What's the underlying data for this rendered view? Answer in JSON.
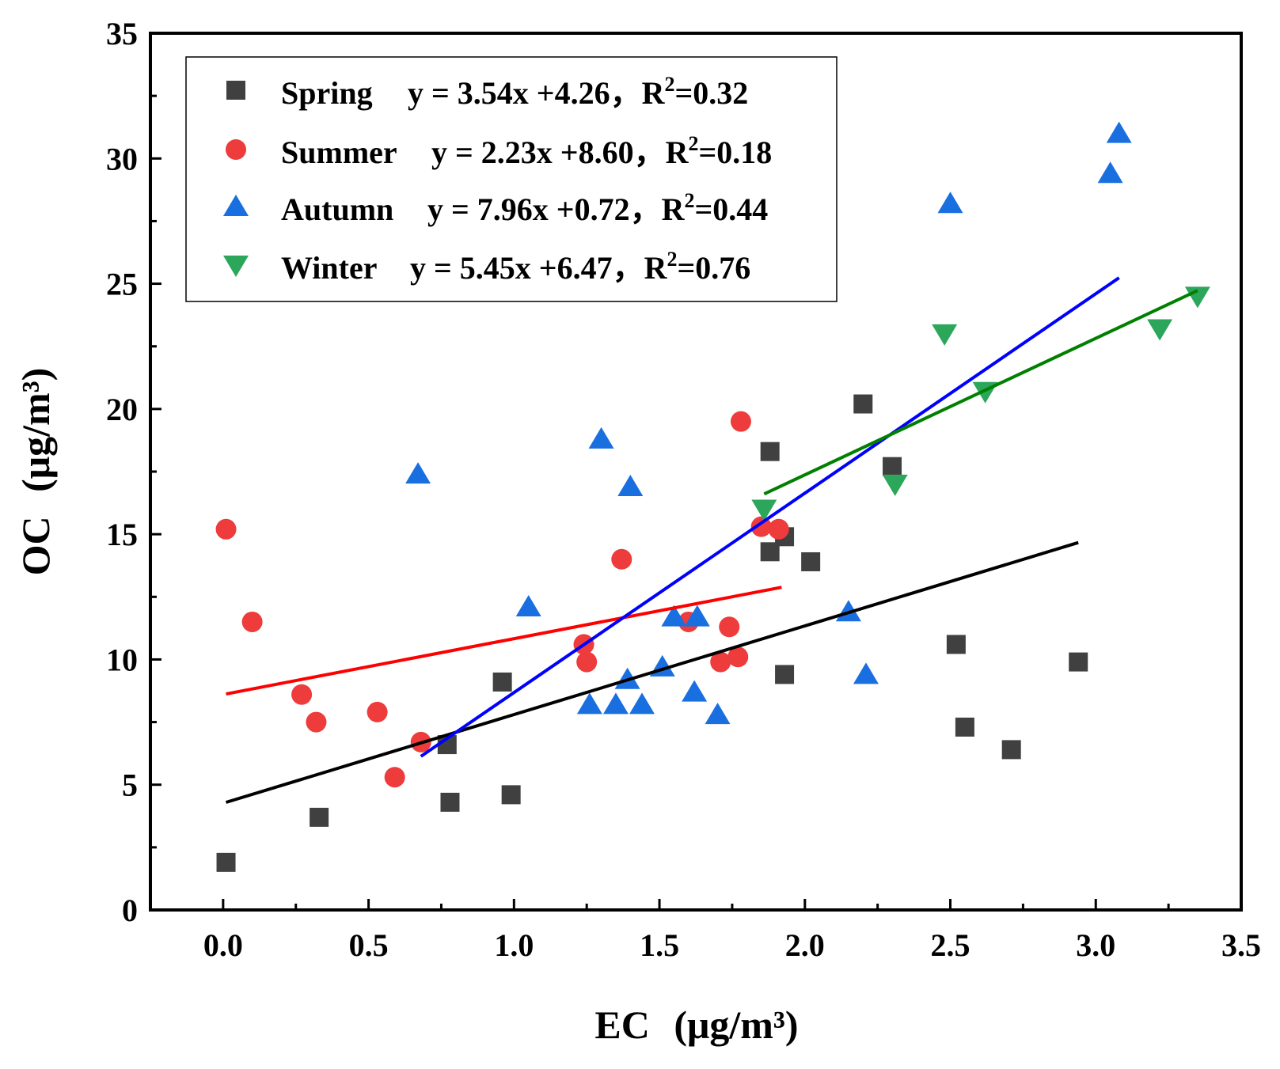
{
  "chart_data": {
    "type": "scatter",
    "title": "",
    "xlabel": "EC",
    "xlabel_unit": "(μg/m³)",
    "ylabel": "OC",
    "ylabel_unit": "(μg/m³)",
    "xlim": [
      -0.25,
      3.5
    ],
    "ylim": [
      0,
      35
    ],
    "xticks": [
      "0.0",
      "0.5",
      "1.0",
      "1.5",
      "2.0",
      "2.5",
      "3.0",
      "3.5"
    ],
    "yticks": [
      "0",
      "5",
      "10",
      "15",
      "20",
      "25",
      "30",
      "35"
    ],
    "legend_position": "top-left",
    "series": [
      {
        "name": "Spring",
        "equation": "y = 3.54x +4.26，",
        "r2_label": "R",
        "r2_sup": "2",
        "r2_value": "=0.32",
        "color": "#404040",
        "marker": "square",
        "fit": {
          "slope": 3.54,
          "intercept": 4.26,
          "x_range": [
            0.01,
            2.94
          ]
        },
        "points": [
          [
            0.01,
            1.9
          ],
          [
            0.33,
            3.7
          ],
          [
            0.77,
            6.6
          ],
          [
            0.78,
            4.3
          ],
          [
            0.96,
            9.1
          ],
          [
            0.99,
            4.6
          ],
          [
            1.88,
            18.3
          ],
          [
            1.88,
            14.3
          ],
          [
            1.93,
            14.9
          ],
          [
            1.93,
            9.4
          ],
          [
            2.02,
            13.9
          ],
          [
            2.2,
            20.2
          ],
          [
            2.3,
            17.7
          ],
          [
            2.52,
            10.6
          ],
          [
            2.55,
            7.3
          ],
          [
            2.71,
            6.4
          ],
          [
            2.94,
            9.9
          ]
        ]
      },
      {
        "name": "Summer",
        "equation": "y = 2.23x +8.60，",
        "r2_label": "R",
        "r2_sup": "2",
        "r2_value": "=0.18",
        "color": "#ee3b3b",
        "marker": "circle",
        "fit": {
          "slope": 2.23,
          "intercept": 8.6,
          "x_range": [
            0.01,
            1.92
          ]
        },
        "points": [
          [
            0.01,
            15.2
          ],
          [
            0.1,
            11.5
          ],
          [
            0.27,
            8.6
          ],
          [
            0.32,
            7.5
          ],
          [
            0.53,
            7.9
          ],
          [
            0.59,
            5.3
          ],
          [
            0.68,
            6.7
          ],
          [
            1.24,
            10.6
          ],
          [
            1.25,
            9.9
          ],
          [
            1.37,
            14.0
          ],
          [
            1.6,
            11.5
          ],
          [
            1.71,
            9.9
          ],
          [
            1.74,
            11.3
          ],
          [
            1.77,
            10.1
          ],
          [
            1.78,
            19.5
          ],
          [
            1.85,
            15.3
          ],
          [
            1.91,
            15.2
          ]
        ]
      },
      {
        "name": "Autumn",
        "equation": "y = 7.96x +0.72，",
        "r2_label": "R",
        "r2_sup": "2",
        "r2_value": "=0.44",
        "color": "#1a6fe0",
        "marker": "triangle-up",
        "fit": {
          "slope": 7.96,
          "intercept": 0.72,
          "x_range": [
            0.68,
            3.08
          ]
        },
        "points": [
          [
            0.67,
            17.4
          ],
          [
            1.05,
            12.1
          ],
          [
            1.26,
            8.2
          ],
          [
            1.3,
            18.8
          ],
          [
            1.35,
            8.2
          ],
          [
            1.39,
            9.2
          ],
          [
            1.4,
            16.9
          ],
          [
            1.44,
            8.2
          ],
          [
            1.51,
            9.7
          ],
          [
            1.55,
            11.7
          ],
          [
            1.62,
            8.7
          ],
          [
            1.63,
            11.7
          ],
          [
            1.7,
            7.8
          ],
          [
            2.15,
            11.9
          ],
          [
            2.21,
            9.4
          ],
          [
            2.5,
            28.2
          ],
          [
            3.05,
            29.4
          ],
          [
            3.08,
            31.0
          ]
        ]
      },
      {
        "name": "Winter",
        "equation": "y = 5.45x +6.47，",
        "r2_label": "R",
        "r2_sup": "2",
        "r2_value": "=0.76",
        "color": "#2ca65a",
        "marker": "triangle-down",
        "fit": {
          "slope": 5.45,
          "intercept": 6.47,
          "x_range": [
            1.86,
            3.35
          ]
        },
        "points": [
          [
            1.86,
            16.0
          ],
          [
            2.31,
            17.0
          ],
          [
            2.48,
            23.0
          ],
          [
            2.62,
            20.7
          ],
          [
            3.22,
            23.2
          ],
          [
            3.35,
            24.5
          ]
        ]
      }
    ],
    "fit_line_colors": {
      "Spring": "#000000",
      "Summer": "#ff0000",
      "Autumn": "#0000ff",
      "Winter": "#008000"
    }
  }
}
